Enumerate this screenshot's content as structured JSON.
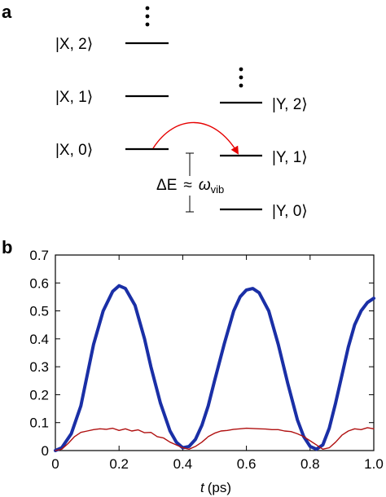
{
  "panel_a": {
    "label": "a",
    "states": [
      {
        "id": "x2",
        "text": "|X, 2⟩"
      },
      {
        "id": "x1",
        "text": "|X, 1⟩"
      },
      {
        "id": "x0",
        "text": "|X, 0⟩"
      },
      {
        "id": "y2",
        "text": "|Y, 2⟩"
      },
      {
        "id": "y1",
        "text": "|Y, 1⟩"
      },
      {
        "id": "y0",
        "text": "|Y, 0⟩"
      }
    ],
    "energy_gap": {
      "lhs": "ΔE",
      "approx": "≈",
      "rhs": "ω",
      "rhs_sub": "vib"
    },
    "colors": {
      "levels": "#000000",
      "arrow": "#e60000"
    }
  },
  "panel_b": {
    "label": "b",
    "chart_data": {
      "type": "line",
      "xlabel_var": "t",
      "xlabel_unit": "(ps)",
      "ylabel": "",
      "xlim": [
        0,
        1.0
      ],
      "ylim": [
        0,
        0.7
      ],
      "xticks": [
        "0",
        "0.2",
        "0.4",
        "0.6",
        "0.8",
        "1.0"
      ],
      "xtick_values": [
        0,
        0.2,
        0.4,
        0.6,
        0.8,
        1.0
      ],
      "yticks": [
        "0",
        "0.1",
        "0.2",
        "0.3",
        "0.4",
        "0.5",
        "0.6",
        "0.7"
      ],
      "ytick_values": [
        0,
        0.1,
        0.2,
        0.3,
        0.4,
        0.5,
        0.6,
        0.7
      ],
      "grid": false,
      "series": [
        {
          "color": "#1a2fa6",
          "x": [
            0,
            0.02,
            0.05,
            0.08,
            0.1,
            0.12,
            0.15,
            0.18,
            0.2,
            0.22,
            0.25,
            0.28,
            0.3,
            0.33,
            0.36,
            0.38,
            0.4,
            0.42,
            0.44,
            0.46,
            0.48,
            0.5,
            0.53,
            0.56,
            0.58,
            0.6,
            0.62,
            0.64,
            0.67,
            0.7,
            0.73,
            0.76,
            0.78,
            0.8,
            0.82,
            0.84,
            0.86,
            0.88,
            0.9,
            0.92,
            0.94,
            0.96,
            0.98,
            1.0
          ],
          "y": [
            0.0,
            0.01,
            0.06,
            0.16,
            0.27,
            0.38,
            0.5,
            0.57,
            0.59,
            0.58,
            0.52,
            0.4,
            0.3,
            0.17,
            0.07,
            0.03,
            0.01,
            0.015,
            0.04,
            0.09,
            0.16,
            0.25,
            0.38,
            0.5,
            0.55,
            0.575,
            0.58,
            0.565,
            0.5,
            0.38,
            0.24,
            0.11,
            0.05,
            0.015,
            0.005,
            0.02,
            0.08,
            0.17,
            0.27,
            0.37,
            0.45,
            0.5,
            0.53,
            0.545
          ]
        },
        {
          "color": "#b01010",
          "x": [
            0,
            0.02,
            0.04,
            0.06,
            0.08,
            0.1,
            0.12,
            0.14,
            0.16,
            0.18,
            0.2,
            0.22,
            0.24,
            0.26,
            0.28,
            0.3,
            0.32,
            0.34,
            0.36,
            0.38,
            0.4,
            0.42,
            0.44,
            0.46,
            0.48,
            0.5,
            0.52,
            0.54,
            0.56,
            0.58,
            0.6,
            0.62,
            0.64,
            0.66,
            0.68,
            0.7,
            0.72,
            0.74,
            0.76,
            0.78,
            0.8,
            0.82,
            0.84,
            0.86,
            0.88,
            0.9,
            0.92,
            0.94,
            0.96,
            0.98,
            1.0
          ],
          "y": [
            0.0,
            0.005,
            0.025,
            0.05,
            0.065,
            0.07,
            0.075,
            0.078,
            0.076,
            0.08,
            0.072,
            0.078,
            0.07,
            0.074,
            0.064,
            0.065,
            0.05,
            0.045,
            0.03,
            0.02,
            0.01,
            0.005,
            0.015,
            0.03,
            0.05,
            0.062,
            0.07,
            0.072,
            0.076,
            0.078,
            0.08,
            0.079,
            0.078,
            0.077,
            0.075,
            0.075,
            0.07,
            0.068,
            0.06,
            0.05,
            0.035,
            0.02,
            0.005,
            0.01,
            0.03,
            0.055,
            0.07,
            0.078,
            0.075,
            0.082,
            0.078
          ]
        }
      ]
    }
  }
}
